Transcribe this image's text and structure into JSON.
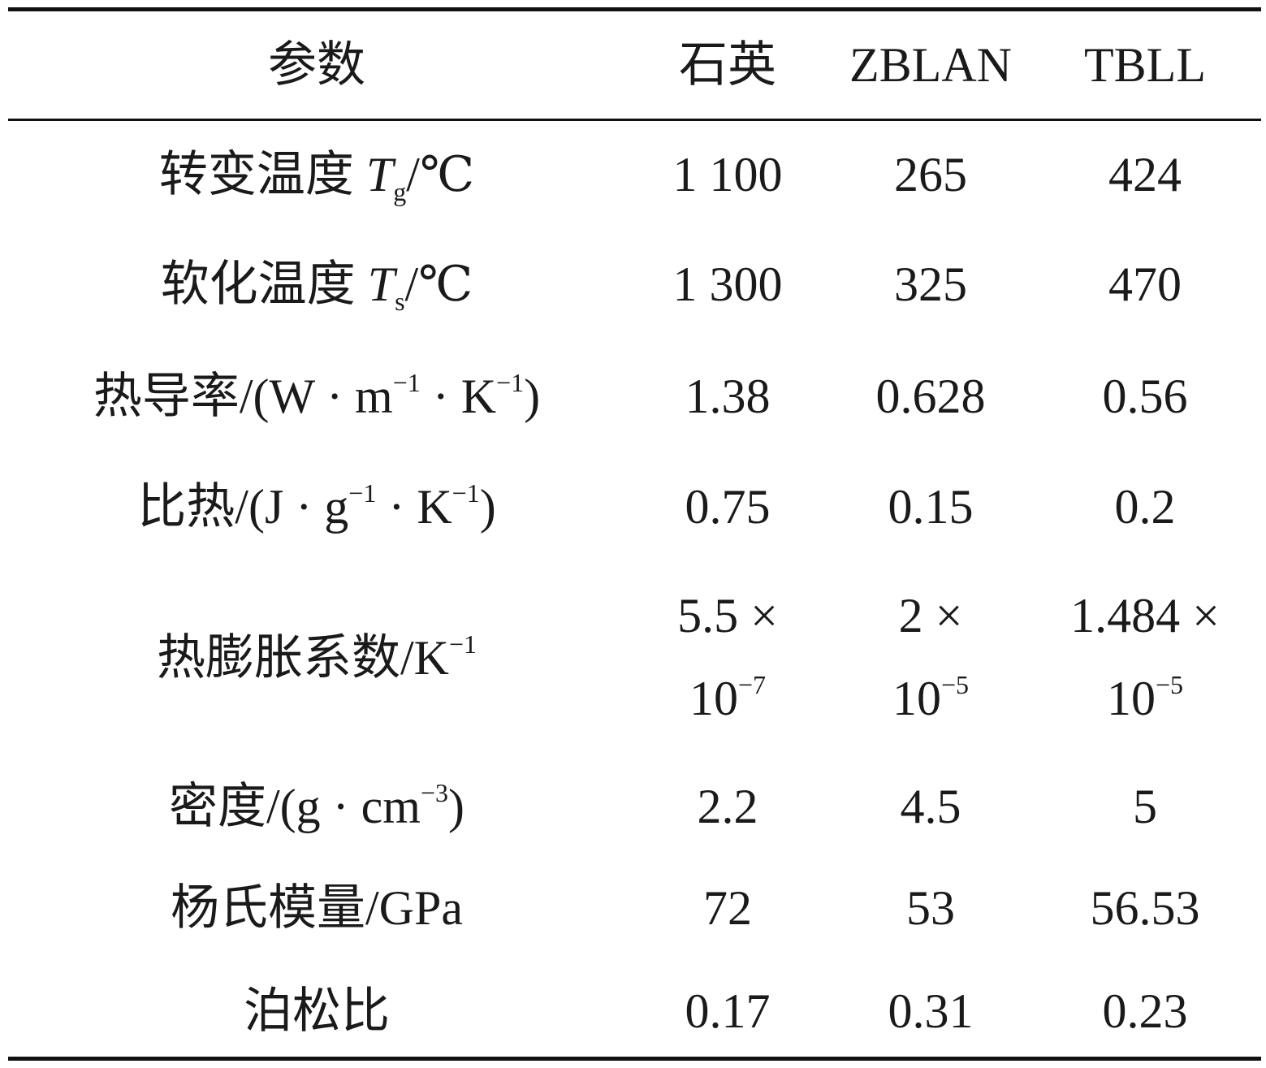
{
  "table": {
    "headers": {
      "param": "参数",
      "quartz": "石英",
      "zblan": "ZBLAN",
      "tbll": "TBLL"
    },
    "rows": [
      {
        "param_text": "转变温度 ",
        "param_symbol": "T",
        "param_sub": "g",
        "param_unit": "/℃",
        "quartz": "1 100",
        "zblan": "265",
        "tbll": "424"
      },
      {
        "param_text": "软化温度 ",
        "param_symbol": "T",
        "param_sub": "s",
        "param_unit": "/℃",
        "quartz": "1 300",
        "zblan": "325",
        "tbll": "470"
      },
      {
        "param_text": "热导率/(W · m",
        "param_sup1": "−1",
        "param_mid": " · K",
        "param_sup2": "−1",
        "param_end": ")",
        "quartz": "1.38",
        "zblan": "0.628",
        "tbll": "0.56"
      },
      {
        "param_text": "比热/(J · g",
        "param_sup1": "−1",
        "param_mid": " · K",
        "param_sup2": "−1",
        "param_end": ")",
        "quartz": "0.75",
        "zblan": "0.15",
        "tbll": "0.2"
      },
      {
        "param_text": "热膨胀系数/K",
        "param_sup1": "−1",
        "quartz_line1": "5.5 ×",
        "quartz_line2": "10",
        "quartz_exp": "−7",
        "zblan_line1": "2 ×",
        "zblan_line2": "10",
        "zblan_exp": "−5",
        "tbll_line1": "1.484 ×",
        "tbll_line2": "10",
        "tbll_exp": "−5"
      },
      {
        "param_text": "密度/(g · cm",
        "param_sup1": "−3",
        "param_end": ")",
        "quartz": "2.2",
        "zblan": "4.5",
        "tbll": "5"
      },
      {
        "param_text": "杨氏模量/GPa",
        "quartz": "72",
        "zblan": "53",
        "tbll": "56.53"
      },
      {
        "param_text": "泊松比",
        "quartz": "0.17",
        "zblan": "0.31",
        "tbll": "0.23"
      }
    ]
  }
}
